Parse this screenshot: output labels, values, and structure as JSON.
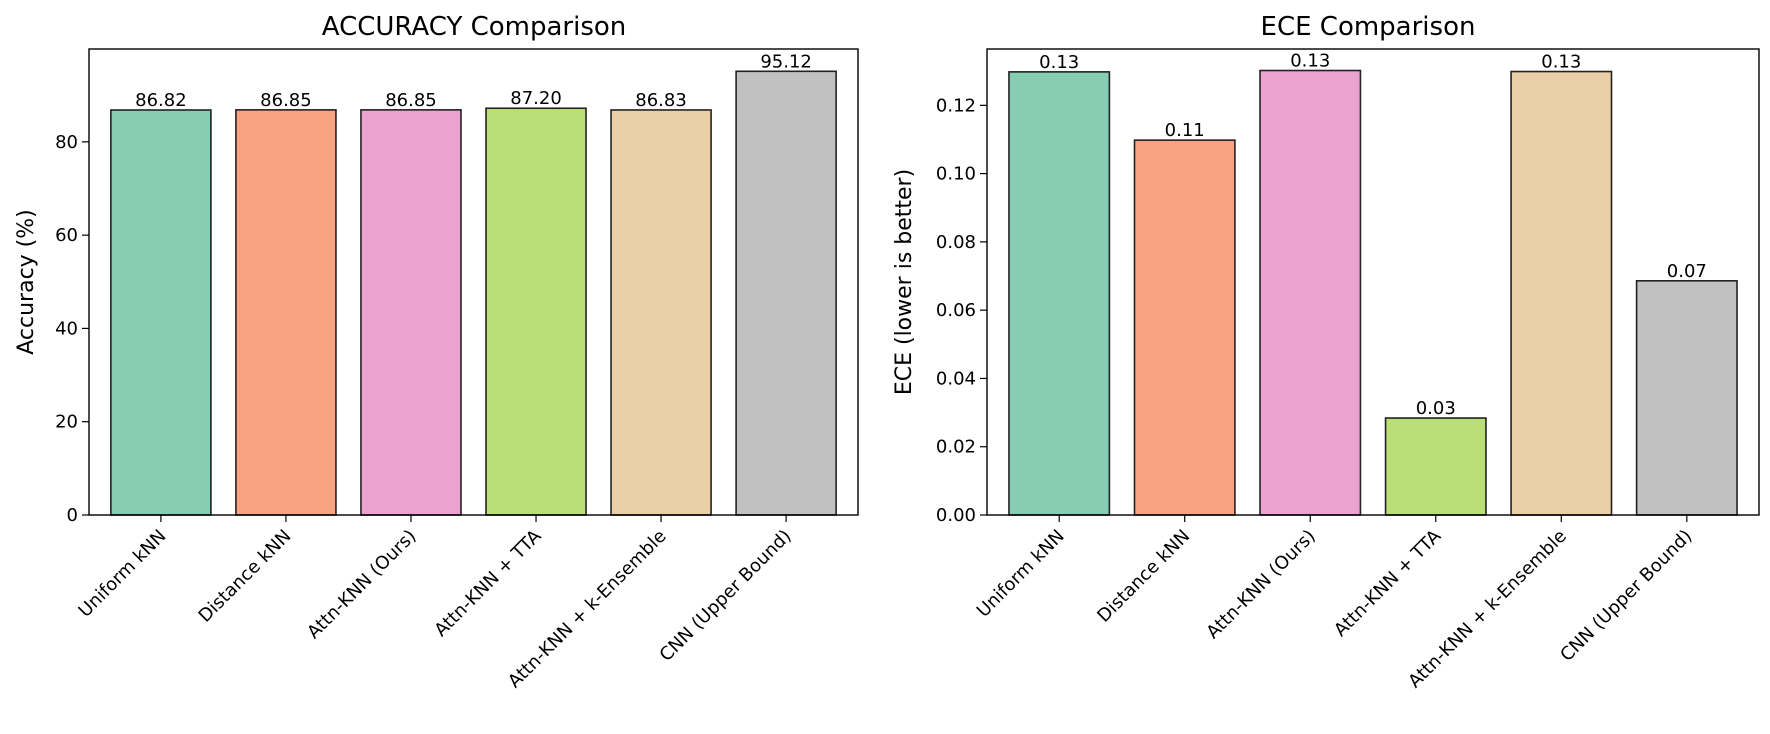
{
  "chart_data": [
    {
      "type": "bar",
      "title": "ACCURACY Comparison",
      "xlabel": "",
      "ylabel": "Accuracy (%)",
      "ylim": [
        0,
        99.9
      ],
      "yticks": [
        0,
        20,
        40,
        60,
        80
      ],
      "tick_decimals": 0,
      "grid": false,
      "categories": [
        "Uniform kNN",
        "Distance kNN",
        "Attn-KNN (Ours)",
        "Attn-KNN + TTA",
        "Attn-KNN + k-Ensemble",
        "CNN (Upper Bound)"
      ],
      "values": [
        86.82,
        86.85,
        86.85,
        87.2,
        86.83,
        95.12
      ],
      "value_labels": [
        "86.82",
        "86.85",
        "86.85",
        "87.20",
        "86.83",
        "95.12"
      ]
    },
    {
      "type": "bar",
      "title": "ECE Comparison",
      "xlabel": "",
      "ylabel": "ECE (lower is better)",
      "ylim": [
        0,
        0.1365
      ],
      "yticks": [
        0.0,
        0.02,
        0.04,
        0.06,
        0.08,
        0.1,
        0.12
      ],
      "tick_decimals": 2,
      "grid": false,
      "categories": [
        "Uniform kNN",
        "Distance kNN",
        "Attn-KNN (Ours)",
        "Attn-KNN + TTA",
        "Attn-KNN + k-Ensemble",
        "CNN (Upper Bound)"
      ],
      "values": [
        0.1298,
        0.1098,
        0.1302,
        0.0284,
        0.1299,
        0.0686
      ],
      "value_labels": [
        "0.13",
        "0.11",
        "0.13",
        "0.03",
        "0.13",
        "0.07"
      ]
    }
  ],
  "colors": {
    "bars": [
      "#86cdb4",
      "#f9a383",
      "#eba2ce",
      "#badf77",
      "#ebcfa8",
      "#c1c1c1"
    ],
    "edge": "#222222",
    "axis": "#000000"
  }
}
